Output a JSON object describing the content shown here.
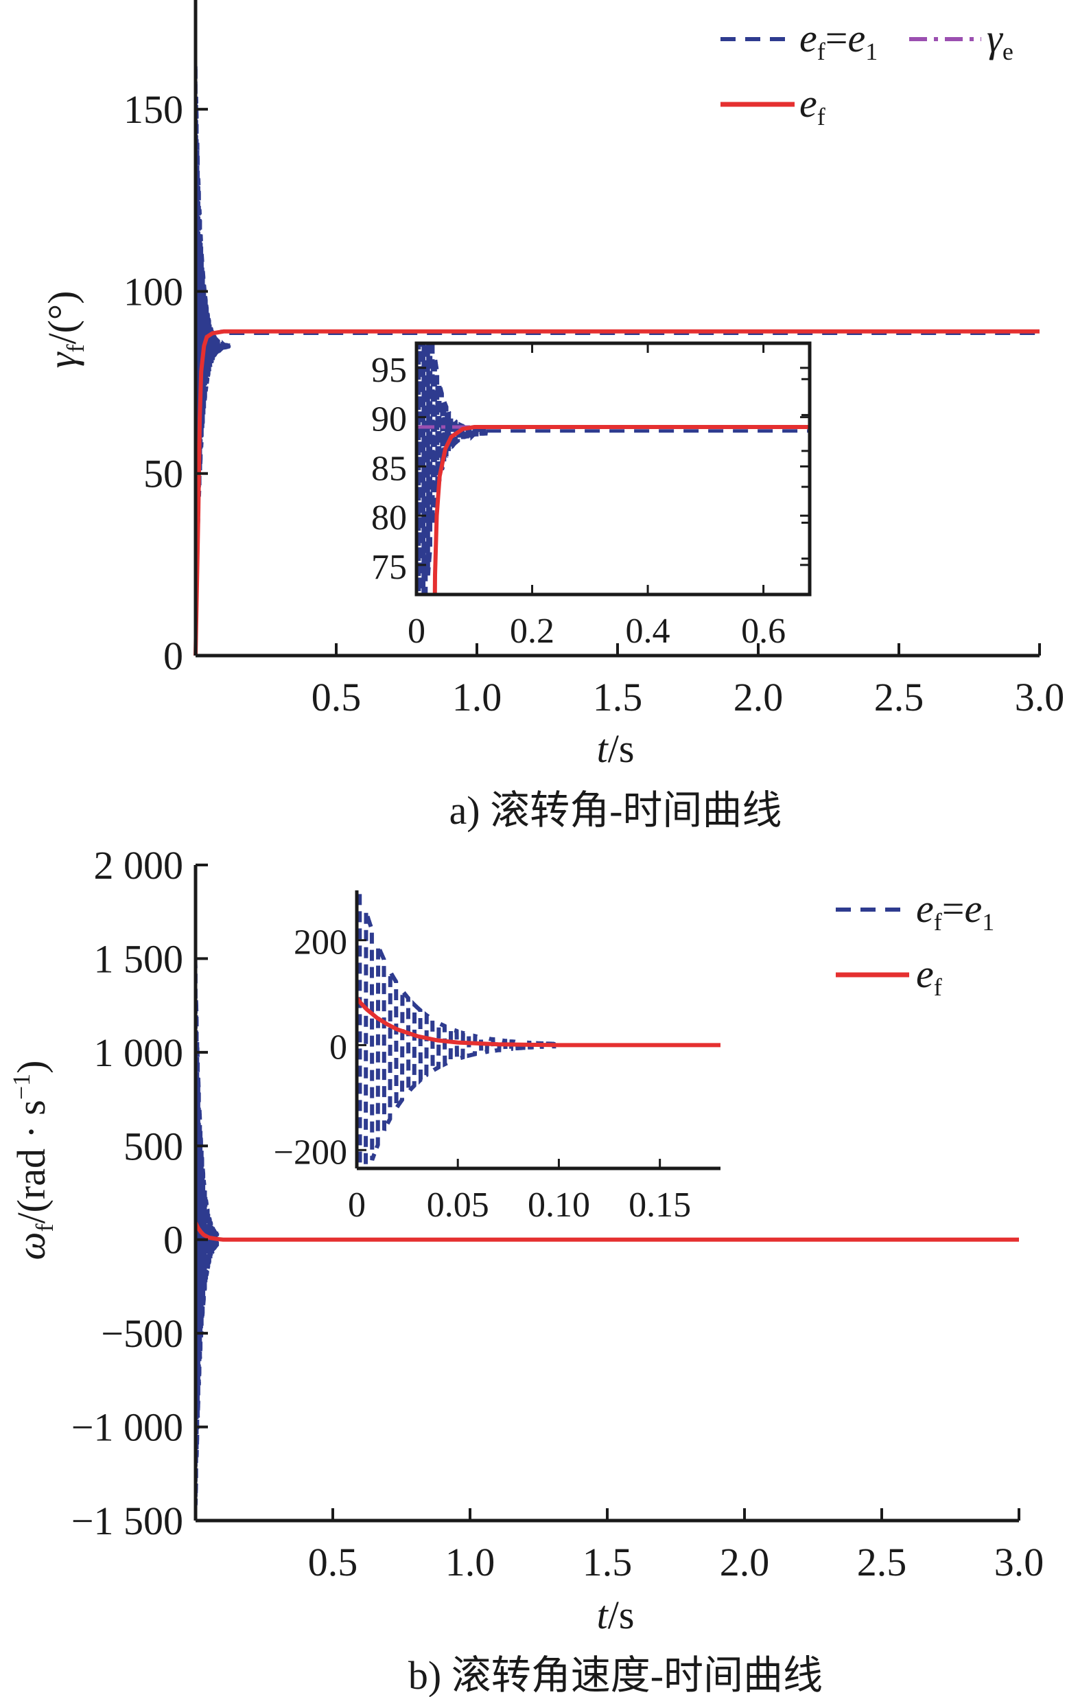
{
  "charts": [
    {
      "type": "line",
      "caption": "a) 滚转角-时间曲线",
      "xlabel": {
        "var": "t",
        "unit": "/s"
      },
      "ylabel": {
        "var": "γ",
        "sub": "f",
        "unit": "/(°)"
      },
      "xlim": [
        0,
        3.0
      ],
      "ylim": [
        0,
        180
      ],
      "xticks": [
        0.5,
        1.0,
        1.5,
        2.0,
        2.5,
        3.0
      ],
      "xtick_labels": [
        "0.5",
        "1.0",
        "1.5",
        "2.0",
        "2.5",
        "3.0"
      ],
      "yticks": [
        0,
        50,
        100,
        150
      ],
      "ytick_labels": [
        "0",
        "50",
        "100",
        "150"
      ],
      "legend": [
        {
          "sym": "e",
          "sub": "f",
          "eq": "=",
          "sym2": "e",
          "sub2": "1",
          "style": "dashed",
          "color": "#2e3b8f"
        },
        {
          "sym": "γ",
          "sub": "e",
          "style": "dashdot",
          "color": "#9b4fb0"
        },
        {
          "sym": "e",
          "sub": "f",
          "style": "solid",
          "color": "#e53030"
        }
      ],
      "series": [
        {
          "key": "ef_e1",
          "style": "dashed",
          "color": "#2e3b8f",
          "description_values": {
            "peak_deg": 165,
            "settle_time_s": 0.08,
            "final_deg": 89
          }
        },
        {
          "key": "gamma_e",
          "style": "dashdot",
          "color": "#9b4fb0",
          "y": 89
        },
        {
          "key": "ef",
          "style": "solid",
          "color": "#e53030",
          "x": [
            0,
            0.01,
            0.015,
            0.02,
            0.03,
            0.04,
            0.06,
            0.1,
            3.0
          ],
          "y": [
            0,
            40,
            65,
            78,
            85,
            87.5,
            88.5,
            89,
            89
          ]
        }
      ],
      "inset": {
        "xlim": [
          0,
          0.68
        ],
        "ylim": [
          72,
          97.5
        ],
        "xticks": [
          0,
          0.2,
          0.4,
          0.6
        ],
        "xtick_labels": [
          "0",
          "0.2",
          "0.4",
          "0.6"
        ],
        "yticks": [
          75,
          80,
          85,
          90,
          95
        ],
        "ytick_labels": [
          "75",
          "80",
          "85",
          "90",
          "95"
        ]
      }
    },
    {
      "type": "line",
      "caption": "b) 滚转角速度-时间曲线",
      "xlabel": {
        "var": "t",
        "unit": "/s"
      },
      "ylabel": {
        "var": "ω",
        "sub": "f",
        "unit": "/(rad · s",
        "sup": "−1",
        "close": ")"
      },
      "xlim": [
        0,
        3.0
      ],
      "ylim": [
        -1500,
        2000
      ],
      "xticks": [
        0.5,
        1.0,
        1.5,
        2.0,
        2.5,
        3.0
      ],
      "xtick_labels": [
        "0.5",
        "1.0",
        "1.5",
        "2.0",
        "2.5",
        "3.0"
      ],
      "yticks": [
        -1500,
        -1000,
        -500,
        0,
        500,
        1000,
        1500,
        2000
      ],
      "ytick_labels": [
        "−1 500",
        "−1 000",
        "−500",
        "0",
        "500",
        "1 000",
        "1 500",
        "2 000"
      ],
      "legend": [
        {
          "sym": "e",
          "sub": "f",
          "eq": "=",
          "sym2": "e",
          "sub2": "1",
          "style": "dashed",
          "color": "#2e3b8f"
        },
        {
          "sym": "e",
          "sub": "f",
          "style": "solid",
          "color": "#e53030"
        }
      ],
      "series": [
        {
          "key": "ef_e1",
          "style": "dashed",
          "color": "#2e3b8f",
          "description_values": {
            "amplitude": 1500,
            "settle_time_s": 0.08,
            "final": 0
          }
        },
        {
          "key": "ef",
          "style": "solid",
          "color": "#e53030",
          "x": [
            0,
            0.005,
            0.01,
            0.02,
            0.03,
            0.05,
            0.08,
            0.1,
            3.0
          ],
          "y": [
            90,
            75,
            60,
            40,
            25,
            10,
            3,
            0,
            0
          ]
        }
      ],
      "inset": {
        "xlim": [
          0,
          0.18
        ],
        "ylim": [
          -235,
          295
        ],
        "xticks": [
          0,
          0.05,
          0.1,
          0.15
        ],
        "xtick_labels": [
          "0",
          "0.05",
          "0.10",
          "0.15"
        ],
        "yticks": [
          -200,
          0,
          200
        ],
        "ytick_labels": [
          "−200",
          "0",
          "200"
        ]
      }
    }
  ]
}
